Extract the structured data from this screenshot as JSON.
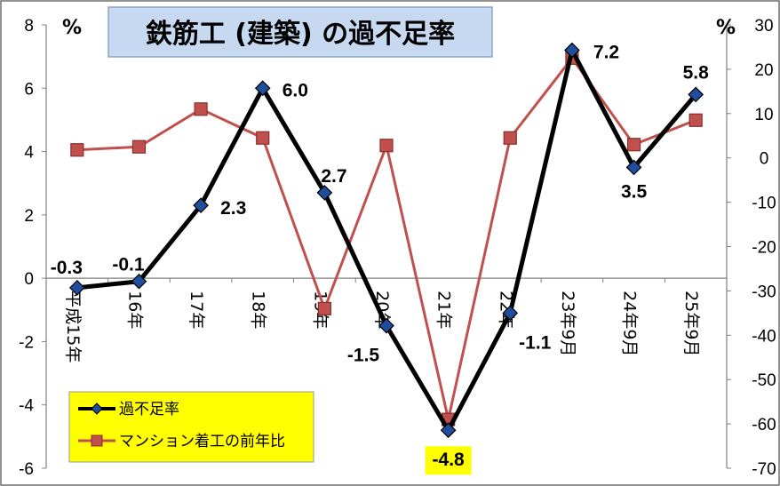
{
  "chart_data": {
    "type": "line",
    "title": "鉄筋工 (建築) の過不足率",
    "left_axis_unit": "%",
    "right_axis_unit": "%",
    "categories": [
      "平成15年",
      "16年",
      "17年",
      "18年",
      "19年",
      "20年",
      "21年",
      "22年",
      "23年9月",
      "24年9月",
      "25年9月"
    ],
    "left_ylim": [
      -6,
      8
    ],
    "left_ticks": [
      "-6",
      "-4",
      "-2",
      "0",
      "2",
      "4",
      "6",
      "8"
    ],
    "right_ylim": [
      -70,
      30
    ],
    "right_ticks": [
      "-70",
      "-60",
      "-50",
      "-40",
      "-30",
      "-20",
      "-10",
      "0",
      "10",
      "20",
      "30"
    ],
    "grid": false,
    "legend_position": "bottom-left",
    "series": [
      {
        "name": "過不足率",
        "axis": "left",
        "color": "#000000",
        "marker_fill": "#1f4e9e",
        "values": [
          -0.3,
          -0.1,
          2.3,
          6.0,
          2.7,
          -1.5,
          -4.8,
          -1.1,
          7.2,
          3.5,
          5.8
        ],
        "labels": [
          "-0.3",
          "-0.1",
          "2.3",
          "6.0",
          "2.7",
          "-1.5",
          "-4.8",
          "-1.1",
          "7.2",
          "3.5",
          "5.8"
        ]
      },
      {
        "name": "マンション着工の前年比",
        "axis": "right",
        "color": "#c0504d",
        "marker_fill": "#c0504d",
        "values": [
          1.8,
          2.5,
          11,
          4.5,
          -34,
          2.8,
          -59,
          4.5,
          22.5,
          3,
          8.5
        ]
      }
    ]
  }
}
